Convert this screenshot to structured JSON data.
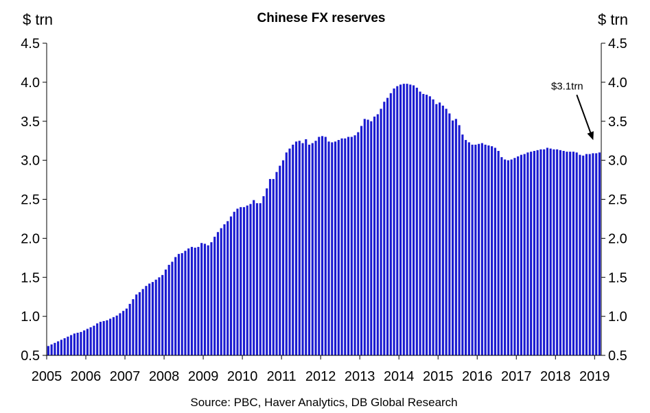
{
  "chart_data": {
    "type": "bar",
    "title": "Chinese FX reserves",
    "ylabel_left": "$ trn",
    "ylabel_right": "$ trn",
    "source": "Source: PBC,  Haver Analytics, DB Global  Research",
    "annotation": {
      "text": "$3.1trn",
      "target_x": 2019.0,
      "target_y": 3.1
    },
    "ylim": [
      0.5,
      4.5
    ],
    "yticks": [
      0.5,
      1.0,
      1.5,
      2.0,
      2.5,
      3.0,
      3.5,
      4.0,
      4.5
    ],
    "ytick_labels": [
      "0.5",
      "1.0",
      "1.5",
      "2.0",
      "2.5",
      "3.0",
      "3.5",
      "4.0",
      "4.5"
    ],
    "xlim": [
      2005,
      2019.17
    ],
    "xticks": [
      2005,
      2006,
      2007,
      2008,
      2009,
      2010,
      2011,
      2012,
      2013,
      2014,
      2015,
      2016,
      2017,
      2018,
      2019
    ],
    "xtick_labels": [
      "2005",
      "2006",
      "2007",
      "2008",
      "2009",
      "2010",
      "2011",
      "2012",
      "2013",
      "2014",
      "2015",
      "2016",
      "2017",
      "2018",
      "2019"
    ],
    "bar_color": "#1a1ad0",
    "frequency": "monthly",
    "start": "2005-01",
    "values": [
      0.62,
      0.64,
      0.66,
      0.68,
      0.7,
      0.72,
      0.74,
      0.76,
      0.78,
      0.79,
      0.8,
      0.82,
      0.84,
      0.86,
      0.88,
      0.91,
      0.93,
      0.94,
      0.95,
      0.97,
      0.99,
      1.01,
      1.04,
      1.07,
      1.1,
      1.16,
      1.22,
      1.28,
      1.31,
      1.35,
      1.39,
      1.42,
      1.44,
      1.47,
      1.5,
      1.53,
      1.6,
      1.66,
      1.7,
      1.76,
      1.8,
      1.81,
      1.84,
      1.87,
      1.89,
      1.88,
      1.89,
      1.94,
      1.93,
      1.91,
      1.95,
      2.02,
      2.08,
      2.13,
      2.18,
      2.22,
      2.28,
      2.34,
      2.38,
      2.4,
      2.4,
      2.42,
      2.44,
      2.49,
      2.45,
      2.45,
      2.54,
      2.64,
      2.76,
      2.76,
      2.85,
      2.93,
      3.0,
      3.1,
      3.15,
      3.2,
      3.24,
      3.25,
      3.22,
      3.27,
      3.2,
      3.22,
      3.25,
      3.3,
      3.31,
      3.3,
      3.24,
      3.23,
      3.24,
      3.26,
      3.28,
      3.28,
      3.3,
      3.3,
      3.32,
      3.36,
      3.44,
      3.53,
      3.52,
      3.5,
      3.56,
      3.59,
      3.66,
      3.75,
      3.8,
      3.86,
      3.92,
      3.95,
      3.97,
      3.98,
      3.98,
      3.97,
      3.96,
      3.93,
      3.88,
      3.85,
      3.84,
      3.82,
      3.78,
      3.72,
      3.74,
      3.7,
      3.66,
      3.6,
      3.51,
      3.53,
      3.45,
      3.33,
      3.26,
      3.23,
      3.2,
      3.2,
      3.21,
      3.22,
      3.2,
      3.19,
      3.18,
      3.16,
      3.12,
      3.04,
      3.01,
      3.0,
      3.01,
      3.03,
      3.05,
      3.07,
      3.08,
      3.1,
      3.11,
      3.12,
      3.13,
      3.14,
      3.14,
      3.16,
      3.15,
      3.14,
      3.14,
      3.13,
      3.12,
      3.11,
      3.11,
      3.11,
      3.1,
      3.07,
      3.06,
      3.08,
      3.08,
      3.09,
      3.09,
      3.1
    ]
  }
}
